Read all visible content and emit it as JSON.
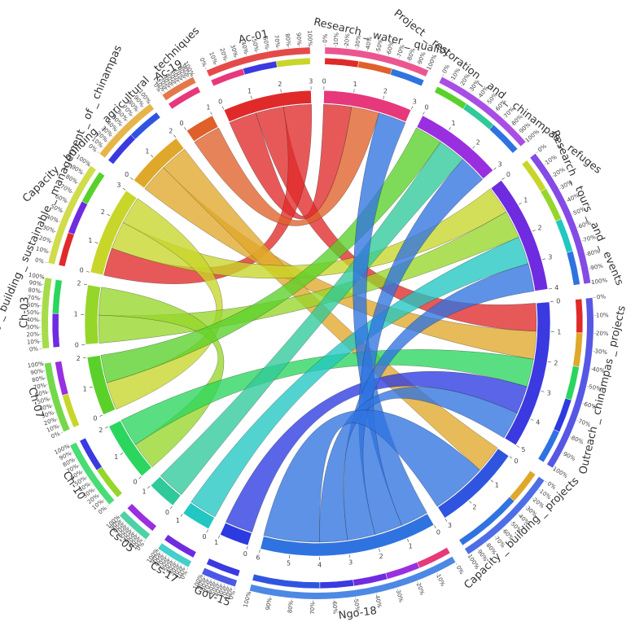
{
  "chart_data": {
    "type": "chord",
    "title": "",
    "sectors": [
      {
        "id": "Research_water_quality",
        "label": "Research _ water _ quality",
        "type": "target",
        "color": "#e7387c"
      },
      {
        "id": "Project_restoration_chinampas",
        "label": "Project _ restoration _ and _ chinampas _ refuges",
        "type": "target",
        "color": "#9a2fe0"
      },
      {
        "id": "Research_tours_events",
        "label": "Research _ tours _ and _ events",
        "type": "target",
        "color": "#6f2be0"
      },
      {
        "id": "Outreach_chinampas_projects",
        "label": "Outreach _ chinampas _ projects",
        "type": "target",
        "color": "#3a3ae0"
      },
      {
        "id": "Capacity_building_projects",
        "label": "Capacity _ building _ projects",
        "type": "target",
        "color": "#2f55e0"
      },
      {
        "id": "Ngo-18",
        "label": "Ngo-18",
        "type": "source",
        "color": "#2f73e0"
      },
      {
        "id": "Gov-15",
        "label": "Gov-15",
        "type": "source",
        "color": "#2b3be0"
      },
      {
        "id": "Cs-17",
        "label": "Cs-17",
        "type": "source",
        "color": "#23c7c2"
      },
      {
        "id": "Cs-05",
        "label": "Cs-05",
        "type": "source",
        "color": "#2fc99a"
      },
      {
        "id": "Ch-10",
        "label": "Ch-10",
        "type": "source",
        "color": "#2ad65e"
      },
      {
        "id": "Ch-07",
        "label": "Ch-07",
        "type": "source",
        "color": "#5ad12a"
      },
      {
        "id": "Ch-03",
        "label": "Ch-03",
        "type": "source",
        "color": "#96d62a"
      },
      {
        "id": "Capacity_building_sustainable_management",
        "label": "Capacity _ building _ sustainable _ management _ of _ chinampas",
        "type": "source",
        "color": "#c8d62a"
      },
      {
        "id": "Capacity_building_agricultural_techniques",
        "label": "Capacity _ building _ agricultural _ techniques",
        "type": "source",
        "color": "#e0a82a"
      },
      {
        "id": "Ac-19",
        "label": "Ac-19",
        "type": "source",
        "color": "#e0602a"
      },
      {
        "id": "Ac-01",
        "label": "Ac-01",
        "type": "source",
        "color": "#e02a2a"
      }
    ],
    "links": [
      {
        "source": "Ac-01",
        "target": "Research_water_quality",
        "value": 1
      },
      {
        "source": "Ac-01",
        "target": "Outreach_chinampas_projects",
        "value": 1
      },
      {
        "source": "Ac-01",
        "target": "Capacity_building_sustainable_management",
        "value": 1
      },
      {
        "source": "Ac-19",
        "target": "Research_water_quality",
        "value": 1
      },
      {
        "source": "Capacity_building_agricultural_techniques",
        "target": "Outreach_chinampas_projects",
        "value": 1
      },
      {
        "source": "Capacity_building_agricultural_techniques",
        "target": "Capacity_building_projects",
        "value": 1
      },
      {
        "source": "Capacity_building_sustainable_management",
        "target": "Research_tours_events",
        "value": 1
      },
      {
        "source": "Capacity_building_sustainable_management",
        "target": "Ch-07",
        "value": 1
      },
      {
        "source": "Ch-03",
        "target": "Research_tours_events",
        "value": 1
      },
      {
        "source": "Ch-03",
        "target": "Ch-10",
        "value": 1
      },
      {
        "source": "Ch-07",
        "target": "Project_restoration_chinampas",
        "value": 1
      },
      {
        "source": "Ch-10",
        "target": "Outreach_chinampas_projects",
        "value": 1
      },
      {
        "source": "Cs-05",
        "target": "Project_restoration_chinampas",
        "value": 1
      },
      {
        "source": "Cs-17",
        "target": "Research_tours_events",
        "value": 1
      },
      {
        "source": "Gov-15",
        "target": "Outreach_chinampas_projects",
        "value": 1
      },
      {
        "source": "Ngo-18",
        "target": "Research_water_quality",
        "value": 1
      },
      {
        "source": "Ngo-18",
        "target": "Project_restoration_chinampas",
        "value": 1
      },
      {
        "source": "Ngo-18",
        "target": "Research_tours_events",
        "value": 1
      },
      {
        "source": "Ngo-18",
        "target": "Outreach_chinampas_projects",
        "value": 1
      },
      {
        "source": "Ngo-18",
        "target": "Capacity_building_projects",
        "value": 2
      }
    ],
    "tick_unit": 1,
    "percent_ticks": [
      "0%",
      "10%",
      "20%",
      "30%",
      "40%",
      "50%",
      "60%",
      "70%",
      "80%",
      "90%",
      "100%"
    ],
    "grid": false,
    "legend": "none"
  }
}
